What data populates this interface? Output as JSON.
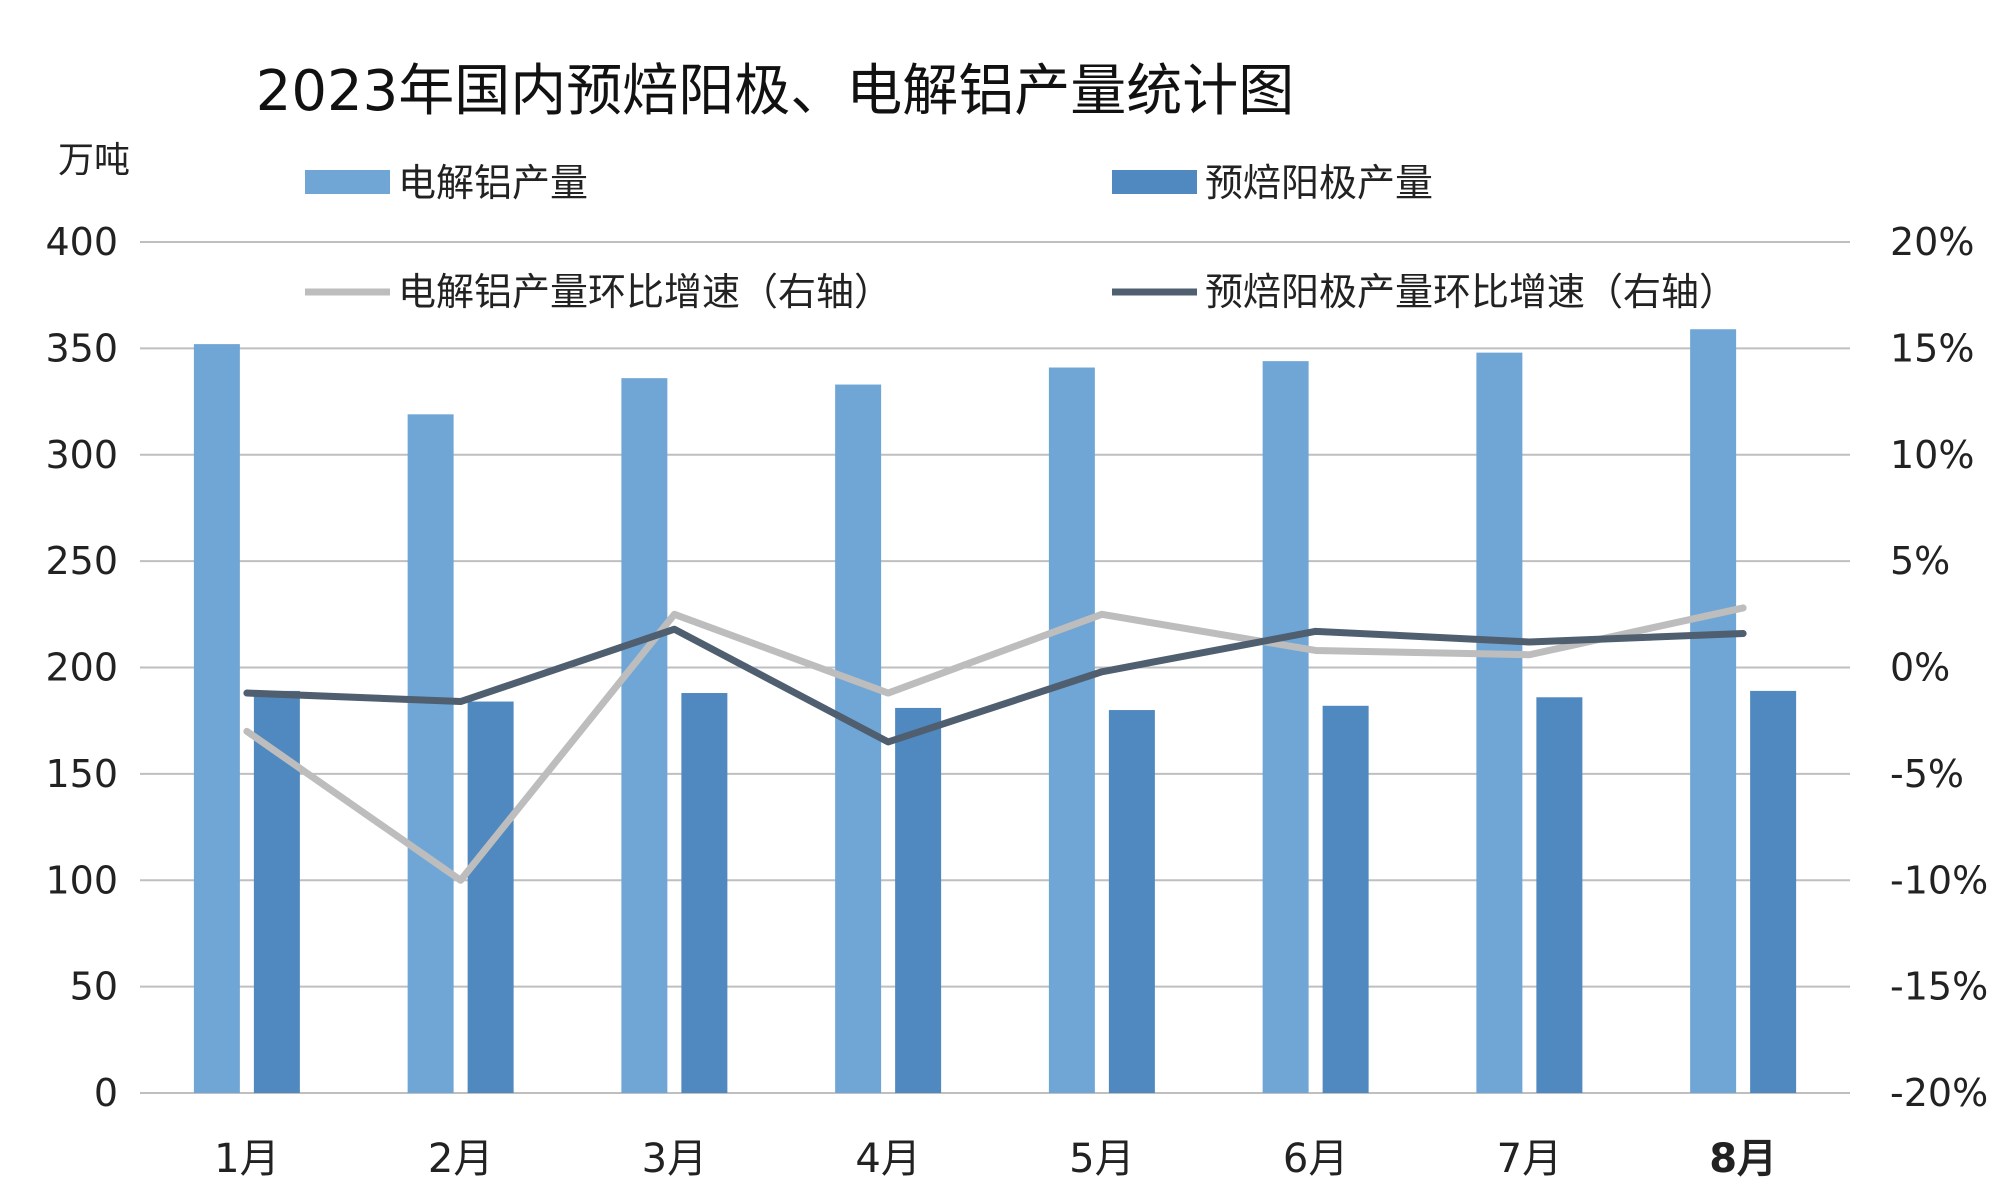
{
  "chart_data": {
    "type": "bar",
    "title": "2023年国内预焙阳极、电解铝产量统计图",
    "y_unit": "万吨",
    "categories": [
      "1月",
      "2月",
      "3月",
      "4月",
      "5月",
      "6月",
      "7月",
      "8月"
    ],
    "ylim": [
      0,
      400
    ],
    "y_ticks": [
      "0",
      "50",
      "100",
      "150",
      "200",
      "250",
      "300",
      "350",
      "400"
    ],
    "y2lim": [
      -20,
      20
    ],
    "y2_ticks": [
      "-20%",
      "-15%",
      "-10%",
      "-5%",
      "0%",
      "5%",
      "10%",
      "15%",
      "20%"
    ],
    "grid": true,
    "legend_position": "top",
    "series": [
      {
        "name": "电解铝产量",
        "kind": "bar",
        "axis": "left",
        "color": "#70a6d6",
        "values": [
          352,
          319,
          336,
          333,
          341,
          344,
          348,
          359
        ]
      },
      {
        "name": "预焙阳极产量",
        "kind": "bar",
        "axis": "left",
        "color": "#5089bf",
        "values": [
          189,
          184,
          188,
          181,
          180,
          182,
          186,
          189
        ]
      },
      {
        "name": "电解铝产量环比增速（右轴）",
        "kind": "line",
        "axis": "right",
        "color": "#bdbdbd",
        "values": [
          -3.0,
          -10.0,
          2.5,
          -1.2,
          2.5,
          0.8,
          0.6,
          2.8
        ]
      },
      {
        "name": "预焙阳极产量环比增速（右轴）",
        "kind": "line",
        "axis": "right",
        "color": "#4f5f70",
        "values": [
          -1.2,
          -1.6,
          1.8,
          -3.5,
          -0.2,
          1.7,
          1.2,
          1.6
        ]
      }
    ]
  }
}
